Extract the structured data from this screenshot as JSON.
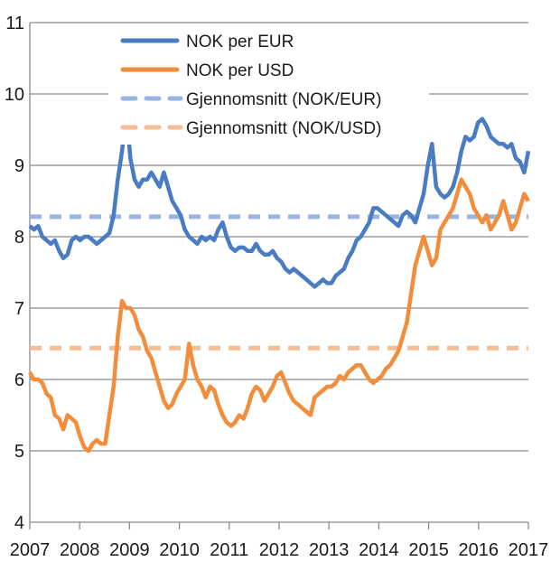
{
  "chart_data": {
    "type": "line",
    "title": "",
    "xlabel": "",
    "ylabel": "",
    "xlim": [
      2007,
      2017
    ],
    "ylim": [
      4,
      11
    ],
    "yticks": [
      "4",
      "5",
      "6",
      "7",
      "8",
      "9",
      "10",
      "11"
    ],
    "xticks": [
      "2007",
      "2008",
      "2009",
      "2010",
      "2011",
      "2012",
      "2013",
      "2014",
      "2015",
      "2016",
      "2017"
    ],
    "grid": "horizontal",
    "legend_position": "top-center",
    "x_step": "monthly",
    "series": [
      {
        "name": "NOK per EUR",
        "color": "#4a7cc4",
        "style": "solid",
        "values": [
          8.15,
          8.1,
          8.15,
          8.0,
          7.95,
          7.9,
          7.95,
          7.8,
          7.7,
          7.75,
          7.95,
          8.0,
          7.95,
          8.0,
          8.0,
          7.95,
          7.9,
          7.95,
          8.0,
          8.05,
          8.3,
          8.8,
          9.2,
          9.8,
          9.1,
          8.8,
          8.7,
          8.8,
          8.8,
          8.9,
          8.8,
          8.7,
          8.9,
          8.7,
          8.5,
          8.4,
          8.3,
          8.1,
          8.0,
          7.95,
          7.9,
          8.0,
          7.95,
          8.0,
          7.95,
          8.1,
          8.2,
          8.0,
          7.85,
          7.8,
          7.85,
          7.85,
          7.8,
          7.8,
          7.9,
          7.8,
          7.75,
          7.75,
          7.8,
          7.7,
          7.65,
          7.55,
          7.5,
          7.55,
          7.5,
          7.45,
          7.4,
          7.35,
          7.3,
          7.35,
          7.4,
          7.35,
          7.35,
          7.45,
          7.5,
          7.55,
          7.7,
          7.8,
          7.95,
          8.0,
          8.1,
          8.2,
          8.4,
          8.4,
          8.35,
          8.3,
          8.25,
          8.2,
          8.15,
          8.3,
          8.35,
          8.3,
          8.2,
          8.4,
          8.6,
          9.0,
          9.3,
          8.7,
          8.6,
          8.55,
          8.6,
          8.7,
          8.9,
          9.2,
          9.4,
          9.35,
          9.4,
          9.6,
          9.65,
          9.55,
          9.4,
          9.35,
          9.3,
          9.3,
          9.25,
          9.3,
          9.1,
          9.05,
          8.9,
          9.2
        ]
      },
      {
        "name": "NOK per USD",
        "color": "#f28e3b",
        "style": "solid",
        "values": [
          6.1,
          6.0,
          6.0,
          5.95,
          5.8,
          5.75,
          5.5,
          5.45,
          5.3,
          5.5,
          5.45,
          5.4,
          5.2,
          5.05,
          5.0,
          5.1,
          5.15,
          5.1,
          5.1,
          5.5,
          5.9,
          6.6,
          7.1,
          7.0,
          7.0,
          6.9,
          6.7,
          6.6,
          6.4,
          6.3,
          6.1,
          5.9,
          5.7,
          5.6,
          5.65,
          5.8,
          5.9,
          6.0,
          6.5,
          6.2,
          6.0,
          5.9,
          5.75,
          5.9,
          5.85,
          5.65,
          5.5,
          5.4,
          5.35,
          5.4,
          5.5,
          5.45,
          5.6,
          5.8,
          5.9,
          5.85,
          5.7,
          5.8,
          5.9,
          6.05,
          6.1,
          5.95,
          5.8,
          5.7,
          5.65,
          5.6,
          5.55,
          5.5,
          5.75,
          5.8,
          5.85,
          5.9,
          5.9,
          5.95,
          6.05,
          6.0,
          6.1,
          6.15,
          6.2,
          6.2,
          6.1,
          6.0,
          5.95,
          6.0,
          6.05,
          6.15,
          6.2,
          6.3,
          6.4,
          6.6,
          6.8,
          7.2,
          7.6,
          7.8,
          8.0,
          7.8,
          7.6,
          7.7,
          8.1,
          8.2,
          8.3,
          8.4,
          8.6,
          8.8,
          8.7,
          8.6,
          8.4,
          8.3,
          8.2,
          8.3,
          8.1,
          8.2,
          8.3,
          8.5,
          8.3,
          8.1,
          8.2,
          8.4,
          8.6,
          8.5
        ]
      },
      {
        "name": "Gjennomsnitt (NOK/EUR)",
        "color": "#98b4e0",
        "style": "dashed",
        "constant": 8.28
      },
      {
        "name": "Gjennomsnitt (NOK/USD)",
        "color": "#f7bc94",
        "style": "dashed",
        "constant": 6.44
      }
    ]
  }
}
